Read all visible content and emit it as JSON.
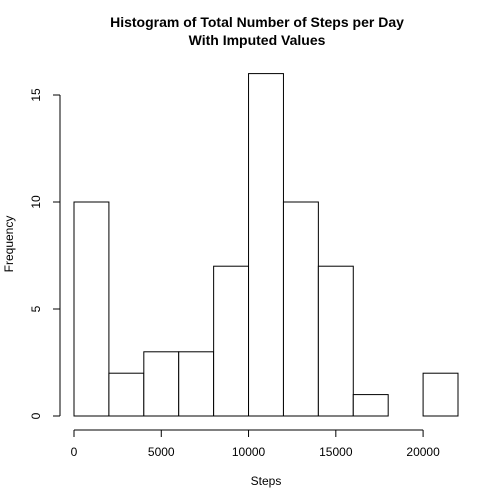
{
  "chart_data": {
    "type": "bar",
    "title_line1": "Histogram of Total Number of Steps per Day",
    "title_line2": "With Imputed Values",
    "xlabel": "Steps",
    "ylabel": "Frequency",
    "bins": [
      {
        "from": 0,
        "to": 2000,
        "count": 10
      },
      {
        "from": 2000,
        "to": 4000,
        "count": 2
      },
      {
        "from": 4000,
        "to": 6000,
        "count": 3
      },
      {
        "from": 6000,
        "to": 8000,
        "count": 3
      },
      {
        "from": 8000,
        "to": 10000,
        "count": 7
      },
      {
        "from": 10000,
        "to": 12000,
        "count": 16
      },
      {
        "from": 12000,
        "to": 14000,
        "count": 10
      },
      {
        "from": 14000,
        "to": 16000,
        "count": 7
      },
      {
        "from": 16000,
        "to": 18000,
        "count": 1
      },
      {
        "from": 18000,
        "to": 20000,
        "count": 0
      },
      {
        "from": 20000,
        "to": 22000,
        "count": 2
      }
    ],
    "xlim": [
      0,
      22000
    ],
    "ylim": [
      0,
      16
    ],
    "x_ticks": [
      0,
      5000,
      10000,
      15000,
      20000
    ],
    "y_ticks": [
      0,
      5,
      10,
      15
    ],
    "grid": false,
    "colors": {
      "bar_fill": "#ffffff",
      "bar_stroke": "#000000"
    }
  }
}
